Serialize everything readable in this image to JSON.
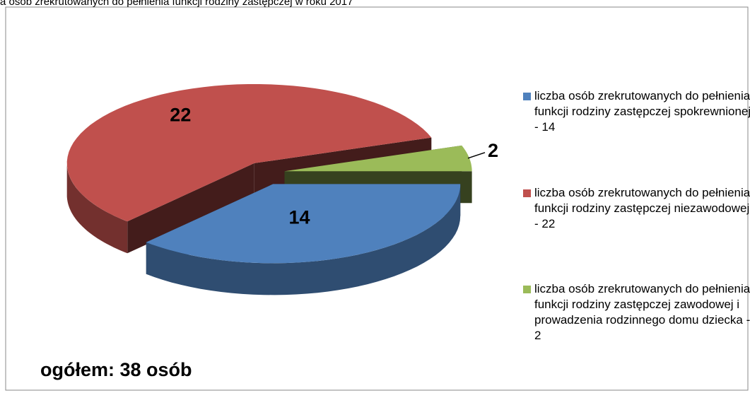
{
  "chart_data": {
    "type": "pie",
    "title": "a osób zrekrutowanych do pełnienia funkcji rodziny zastępczej w roku 2017",
    "categories": [
      "liczba osób zrekrutowanych do pełnienia funkcji rodziny zastępczej spokrewnionej - 14",
      "liczba osób zrekrutowanych do pełnienia funkcji rodziny zastępczej niezawodowej - 22",
      "liczba osób zrekrutowanych do pełnienia funkcji rodziny zastępczej zawodowej i prowadzenia rodzinnego domu dziecka - 2"
    ],
    "values": [
      14,
      22,
      2
    ],
    "colors": [
      "#4f81bd",
      "#c0504d",
      "#9bbb59"
    ],
    "annotation": "ogółem: 38 osób",
    "legend": "right"
  }
}
